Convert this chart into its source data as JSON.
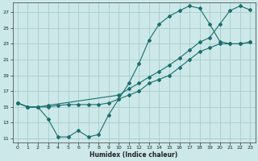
{
  "xlabel": "Humidex (Indice chaleur)",
  "bg_color": "#cce8e8",
  "grid_color": "#aacccc",
  "line_color": "#1a6e6e",
  "xlim": [
    -0.5,
    23.5
  ],
  "ylim": [
    10.5,
    28.2
  ],
  "xticks": [
    0,
    1,
    2,
    3,
    4,
    5,
    6,
    7,
    8,
    9,
    10,
    11,
    12,
    13,
    14,
    15,
    16,
    17,
    18,
    19,
    20,
    21,
    22,
    23
  ],
  "yticks": [
    11,
    13,
    15,
    17,
    19,
    21,
    23,
    25,
    27
  ],
  "line1_x": [
    0,
    1,
    2,
    3,
    4,
    5,
    6,
    7,
    8,
    9,
    10,
    11,
    12,
    13,
    14,
    15,
    16,
    17,
    18,
    19,
    20,
    21,
    22,
    23
  ],
  "line1_y": [
    15.5,
    15.0,
    15.0,
    15.0,
    15.2,
    15.3,
    15.3,
    15.3,
    15.3,
    15.5,
    16.0,
    16.5,
    17.0,
    18.0,
    18.5,
    19.0,
    20.0,
    21.0,
    22.0,
    22.5,
    23.0,
    23.0,
    23.0,
    23.2
  ],
  "line2_x": [
    0,
    1,
    2,
    3,
    4,
    5,
    6,
    7,
    8,
    9,
    10,
    11,
    12,
    13,
    14,
    15,
    16,
    17,
    18,
    19,
    20,
    21,
    22,
    23
  ],
  "line2_y": [
    15.5,
    15.0,
    15.0,
    13.5,
    11.2,
    11.2,
    12.0,
    11.2,
    11.5,
    14.0,
    16.0,
    18.0,
    20.5,
    23.5,
    25.5,
    26.5,
    27.2,
    27.8,
    27.5,
    25.5,
    23.3,
    23.0,
    23.0,
    23.2
  ],
  "line3_x": [
    0,
    1,
    2,
    3,
    10,
    11,
    12,
    13,
    14,
    15,
    16,
    17,
    18,
    19,
    20,
    21,
    22,
    23
  ],
  "line3_y": [
    15.5,
    15.0,
    15.0,
    15.2,
    16.5,
    17.3,
    18.0,
    18.8,
    19.5,
    20.3,
    21.2,
    22.2,
    23.2,
    23.8,
    25.5,
    27.2,
    27.8,
    27.3
  ]
}
